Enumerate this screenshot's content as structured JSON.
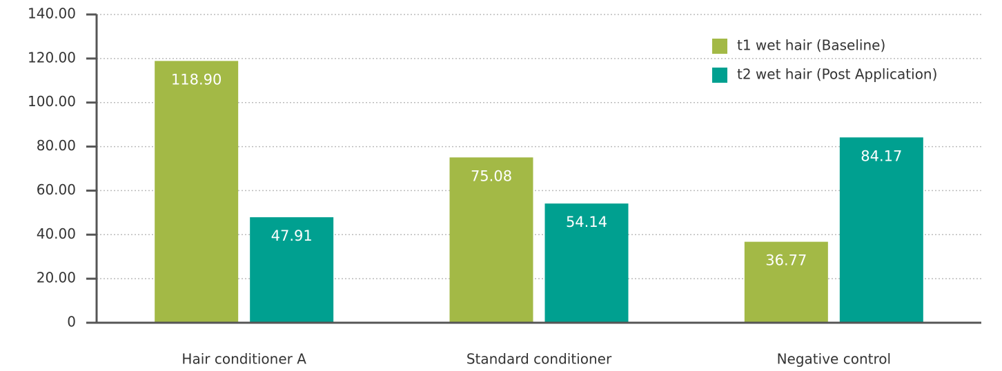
{
  "chart_data": {
    "type": "bar",
    "categories": [
      "Hair conditioner A",
      "Standard conditioner",
      "Negative control"
    ],
    "series": [
      {
        "name": "t1 wet hair (Baseline)",
        "color": "#a3b946",
        "values": [
          118.9,
          75.08,
          36.77
        ],
        "value_labels": [
          "118.90",
          "75.08",
          "36.77"
        ]
      },
      {
        "name": "t2 wet hair (Post Application)",
        "color": "#00a090",
        "values": [
          47.91,
          54.14,
          84.17
        ],
        "value_labels": [
          "47.91",
          "54.14",
          "84.17"
        ]
      }
    ],
    "ylim": [
      0,
      140
    ],
    "yticks": [
      0,
      {
        "value": 20,
        "label": "20.00"
      },
      {
        "value": 40,
        "label": "40.00"
      },
      {
        "value": 60,
        "label": "60.00"
      },
      {
        "value": 80,
        "label": "80.00"
      },
      {
        "value": 100,
        "label": "100.00"
      },
      {
        "value": 120,
        "label": "120.00"
      },
      {
        "value": 140,
        "label": "140.00"
      }
    ],
    "grid": true,
    "legend": "upper right"
  }
}
